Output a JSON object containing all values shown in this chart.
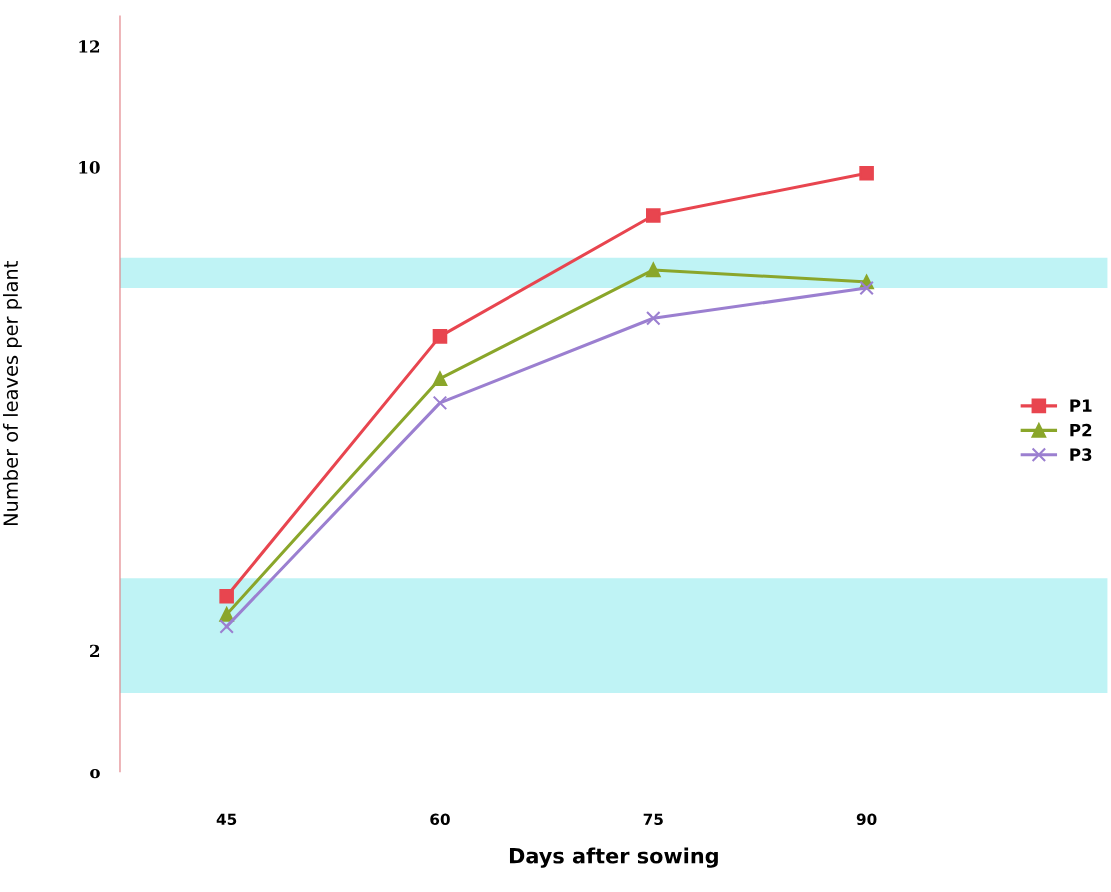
{
  "chart_data": {
    "type": "line",
    "xlabel": "Days after sowing",
    "ylabel": "Number of leaves per plant",
    "categories": [
      "45",
      "60",
      "75",
      "90"
    ],
    "series": [
      {
        "name": "P1",
        "color": "#e8454f",
        "marker": "square",
        "values": [
          2.9,
          7.2,
          9.2,
          9.9
        ]
      },
      {
        "name": "P2",
        "color": "#8aa62a",
        "marker": "triangle",
        "values": [
          2.6,
          6.5,
          8.3,
          8.1
        ]
      },
      {
        "name": "P3",
        "color": "#9b7fd0",
        "marker": "cross",
        "values": [
          2.4,
          6.1,
          7.5,
          8.0
        ]
      }
    ],
    "ylim": [
      0,
      12.5
    ],
    "yticks": [
      {
        "value": 0,
        "label": "o"
      },
      2,
      10,
      12
    ],
    "bands": [
      {
        "axis": "y",
        "from": 8.0,
        "to": 8.5,
        "color": "#bff3f5"
      },
      {
        "axis": "y",
        "from": 1.3,
        "to": 3.2,
        "color": "#bff3f5"
      }
    ],
    "grid": false,
    "legend": "right",
    "line_style": "solid"
  }
}
